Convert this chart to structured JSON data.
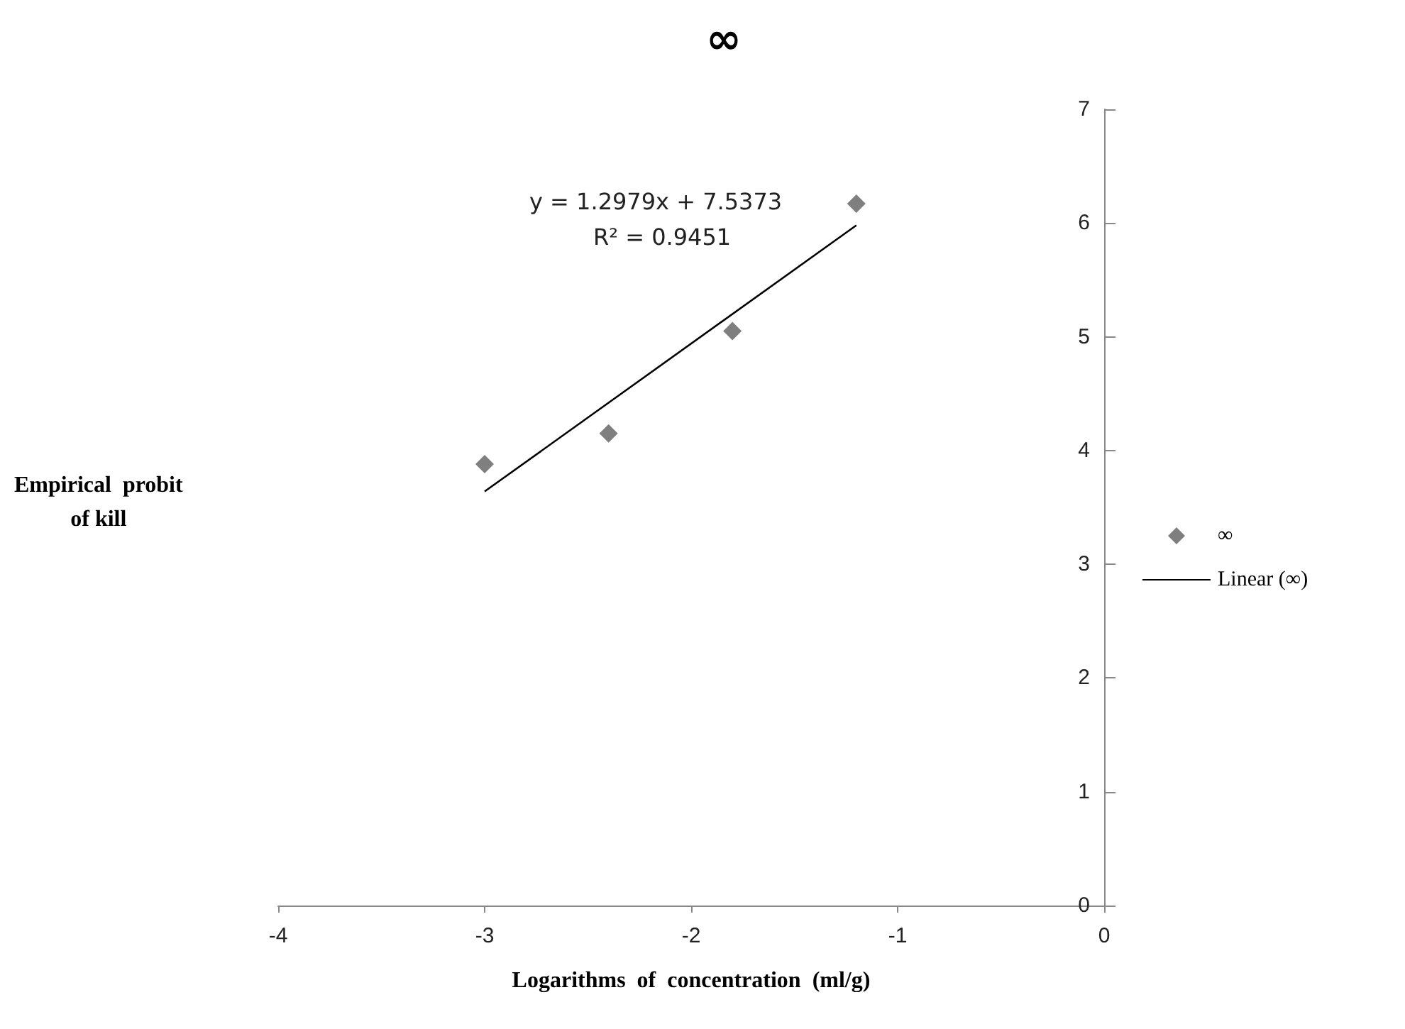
{
  "chart_data": {
    "type": "scatter",
    "title": "∞",
    "xlabel": "Logarithms  of  concentration  (ml/g)",
    "ylabel": "Empirical  probit\nof kill",
    "annotations": [
      "y = 1.2979x + 7.5373",
      "R² = 0.9451"
    ],
    "series": [
      {
        "name": "∞",
        "type": "scatter",
        "color": "#5f5f5f",
        "marker": "diamond",
        "x": [
          -3,
          -2.4,
          -1.8,
          -1.2
        ],
        "values": [
          3.88,
          4.15,
          5.05,
          6.17
        ]
      },
      {
        "name": "Linear (∞)",
        "type": "line",
        "color": "#000000",
        "marker": "none",
        "x": [
          -3,
          -1.2
        ],
        "values": [
          3.64,
          5.98
        ]
      }
    ],
    "xlim": [
      -4,
      0
    ],
    "xticks": [
      -4,
      -3,
      -2,
      -1,
      0
    ],
    "ylim": [
      0,
      7
    ],
    "yticks": [
      0,
      1,
      2,
      3,
      4,
      5,
      6,
      7
    ],
    "grid": false,
    "legend": "right"
  }
}
